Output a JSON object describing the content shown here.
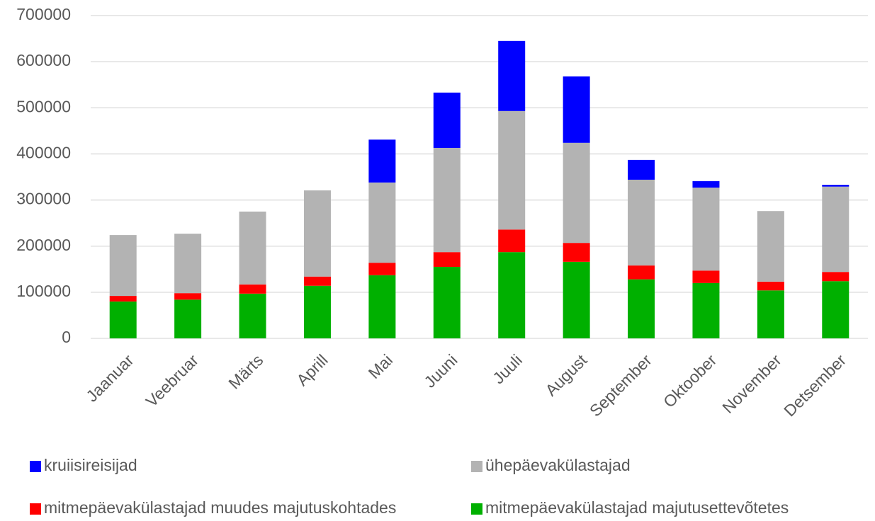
{
  "chart_data": {
    "type": "stacked_bar",
    "categories": [
      "Jaanuar",
      "Veebruar",
      "Märts",
      "Aprill",
      "Mai",
      "Juuni",
      "Juuli",
      "August",
      "September",
      "Oktoober",
      "November",
      "Detsember"
    ],
    "series": [
      {
        "name": "kruiisireisijad",
        "color": "#0000ff",
        "values": [
          0,
          0,
          0,
          0,
          93000,
          120000,
          152000,
          144000,
          43000,
          14000,
          0,
          4000
        ]
      },
      {
        "name": "ühepäevakülastajad",
        "color": "#b3b3b3",
        "values": [
          132000,
          129000,
          158000,
          187000,
          174000,
          226000,
          257000,
          217000,
          186000,
          180000,
          153000,
          185000
        ]
      },
      {
        "name": "mitmepäevakülastajad muudes majutuskohtades",
        "color": "#ff0000",
        "values": [
          12000,
          14000,
          20000,
          20000,
          27000,
          32000,
          49000,
          41000,
          30000,
          27000,
          19000,
          20000
        ]
      },
      {
        "name": "mitmepäevakülastajad majutusettevõtetes",
        "color": "#00b000",
        "values": [
          80000,
          84000,
          97000,
          114000,
          137000,
          155000,
          187000,
          166000,
          128000,
          120000,
          104000,
          124000
        ]
      }
    ],
    "ylim": [
      0,
      700000
    ],
    "yticks": [
      0,
      100000,
      200000,
      300000,
      400000,
      500000,
      600000,
      700000
    ],
    "grid": true
  }
}
